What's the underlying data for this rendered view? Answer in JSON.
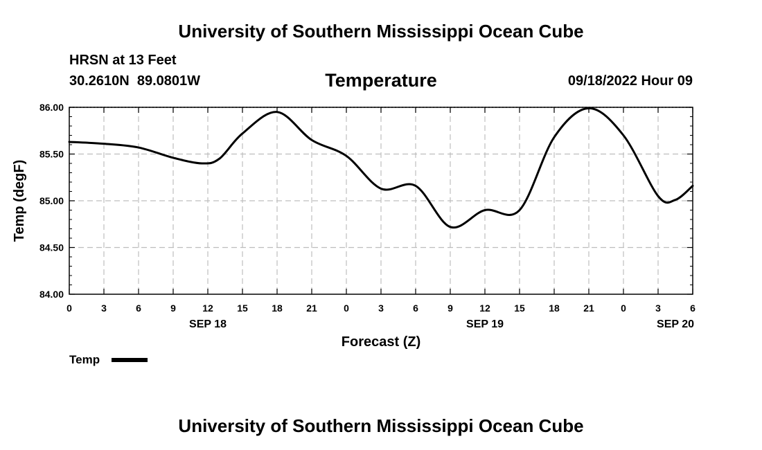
{
  "page_title": "University of Southern Mississippi Ocean Cube",
  "footer_title": "University of Southern Mississippi Ocean Cube",
  "station": {
    "name": "HRSN at 13 Feet",
    "coords": "30.2610N  89.0801W",
    "datetime": "09/18/2022 Hour 09"
  },
  "legend": {
    "label": "Temp"
  },
  "chart_data": {
    "type": "line",
    "title": "Temperature",
    "xlabel": "Forecast (Z)",
    "ylabel": "Temp (degF)",
    "xlim": [
      0,
      54
    ],
    "ylim": [
      84.0,
      86.0
    ],
    "y_ticks": [
      84.0,
      84.5,
      85.0,
      85.5,
      86.0
    ],
    "y_tick_labels": [
      "84.00",
      "84.50",
      "85.00",
      "85.50",
      "86.00"
    ],
    "x_ticks": [
      0,
      3,
      6,
      9,
      12,
      15,
      18,
      21,
      24,
      27,
      30,
      33,
      36,
      39,
      42,
      45,
      48,
      51,
      54
    ],
    "x_tick_labels": [
      "0",
      "3",
      "6",
      "9",
      "12",
      "15",
      "18",
      "21",
      "0",
      "3",
      "6",
      "9",
      "12",
      "15",
      "18",
      "21",
      "0",
      "3",
      "6"
    ],
    "date_labels": [
      {
        "x": 12,
        "label": "SEP 18"
      },
      {
        "x": 36,
        "label": "SEP 19"
      },
      {
        "x": 52.5,
        "label": "SEP 20"
      }
    ],
    "grid": true,
    "series": [
      {
        "name": "Temp",
        "color": "#000000",
        "x": [
          0,
          3,
          6,
          9,
          11.5,
          13,
          15,
          18,
          21,
          24,
          27,
          30,
          33,
          36,
          39,
          42,
          45,
          48,
          51,
          52.5,
          54
        ],
        "values": [
          85.63,
          85.61,
          85.57,
          85.46,
          85.4,
          85.45,
          85.72,
          85.95,
          85.65,
          85.48,
          85.13,
          85.16,
          84.72,
          84.9,
          84.9,
          85.68,
          85.99,
          85.7,
          85.05,
          85.01,
          85.16
        ]
      }
    ]
  }
}
